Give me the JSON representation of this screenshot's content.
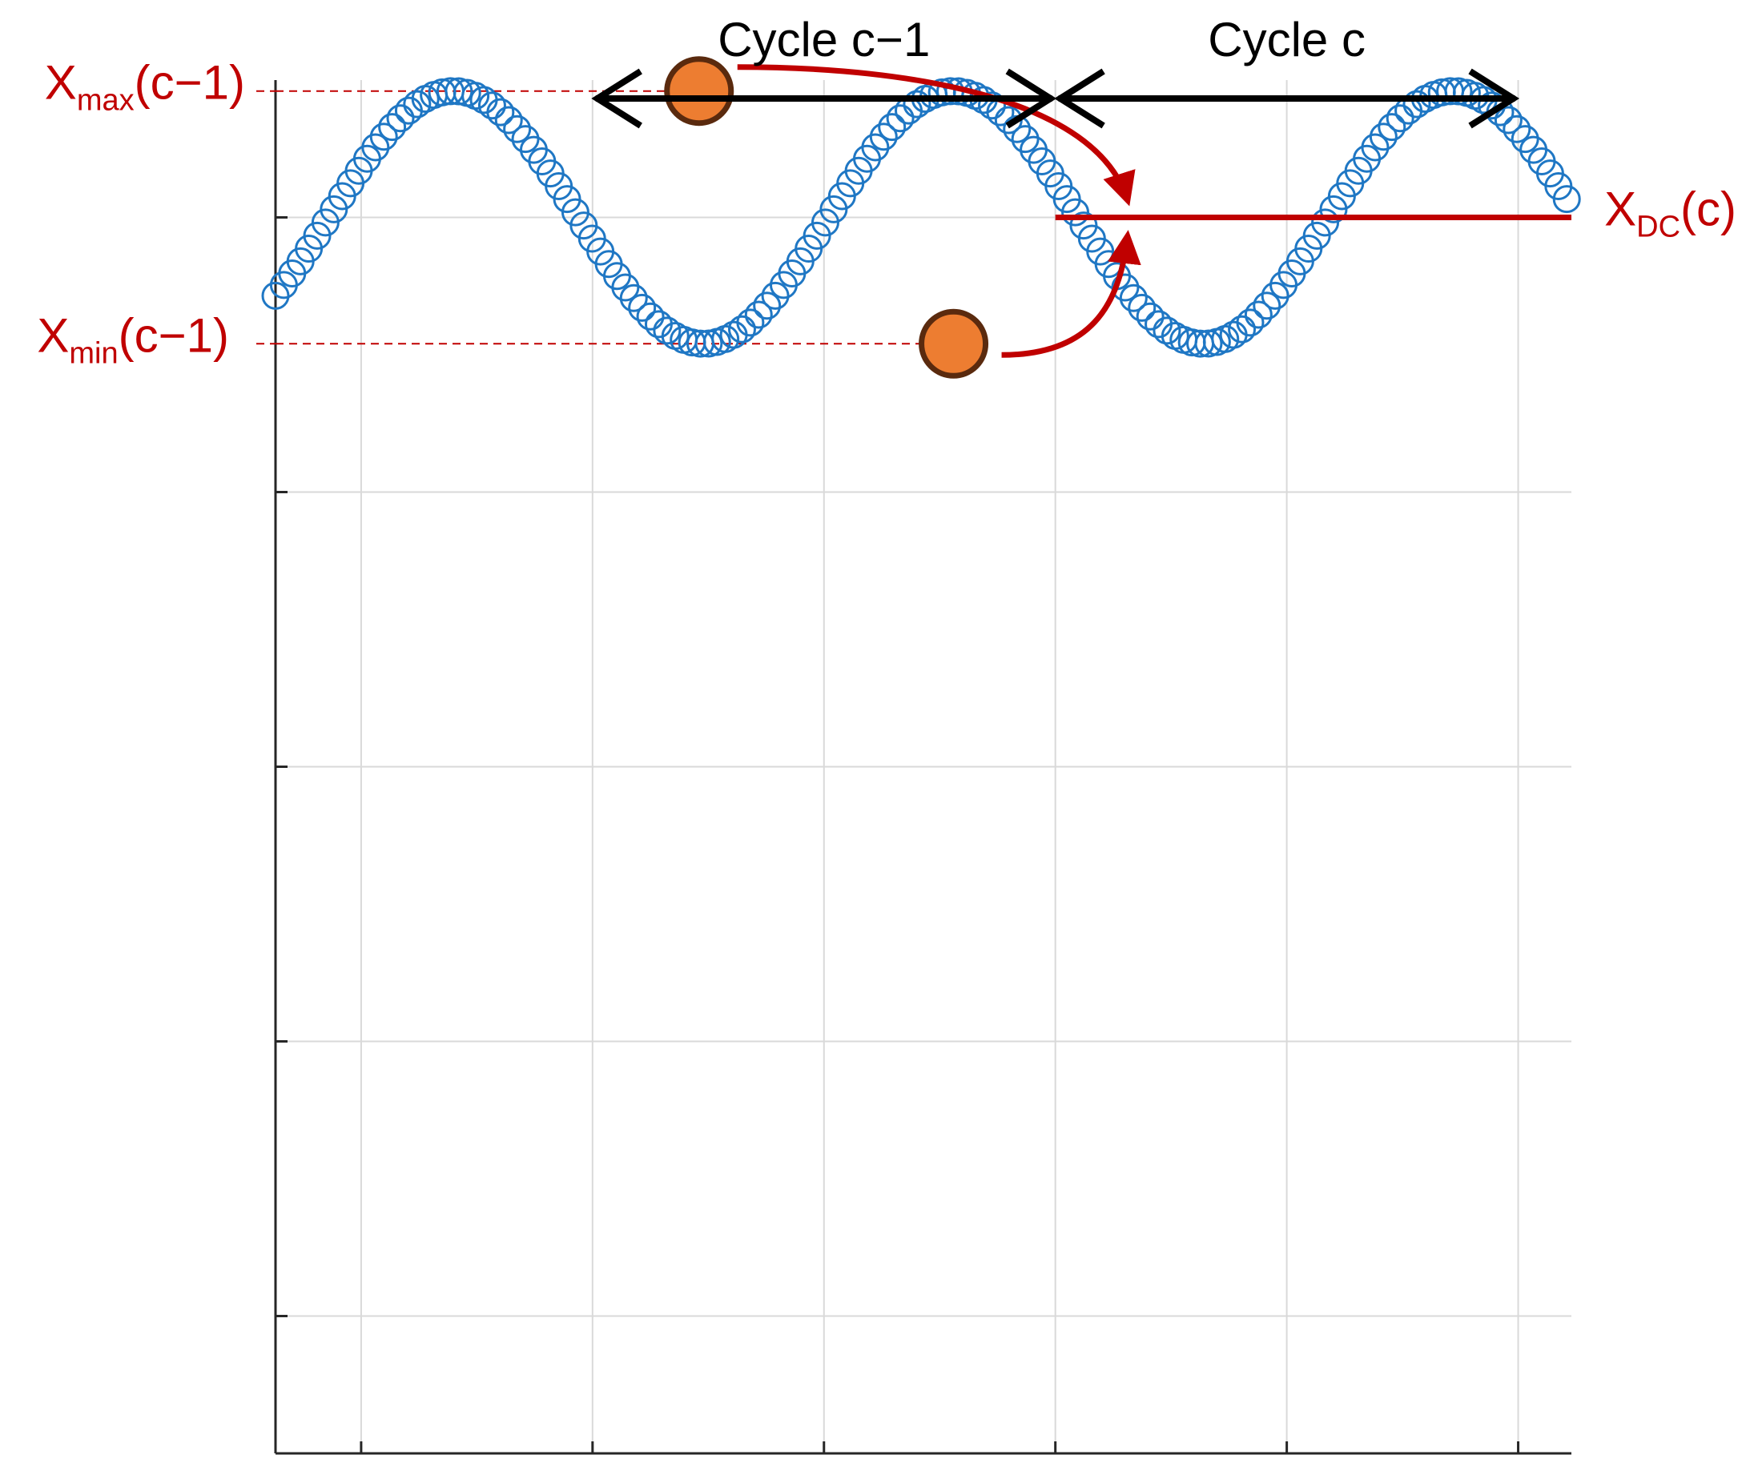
{
  "chart_data": {
    "type": "scatter",
    "title": "",
    "xlabel": "",
    "ylabel": "",
    "grid": true,
    "xlim": [
      0,
      5.6
    ],
    "ylim": [
      -4.5,
      0.5
    ],
    "x_ticks": [
      0.37,
      1.37,
      2.37,
      3.37,
      4.37,
      5.37
    ],
    "y_ticks": [
      0,
      -1,
      -2,
      -3,
      -4
    ],
    "series": [
      {
        "marker": "open-circle",
        "color": "#1f77c4",
        "function": "sine",
        "amplitude": 0.46,
        "period": 2.16,
        "offset": 0,
        "phase_x": 0.23,
        "x_start": 0,
        "x_end": 5.6,
        "step": 0.036
      }
    ],
    "highlight_points": [
      {
        "x": 1.83,
        "y": 0.46,
        "color": "#ed7d31"
      },
      {
        "x": 2.93,
        "y": -0.46,
        "color": "#ed7d31"
      }
    ],
    "dc_line": {
      "y": 0,
      "x_from": 3.37,
      "x_to": 5.6,
      "color": "#c00000"
    },
    "annotations": {
      "cycles": [
        {
          "label": "Cycle c−1",
          "x_from": 1.37,
          "x_to": 3.37
        },
        {
          "label": "Cycle c",
          "x_from": 3.37,
          "x_to": 5.37
        }
      ],
      "xmax": {
        "base": "X",
        "sub": "max",
        "arg": "(c−1)",
        "y": 0.46
      },
      "xmin": {
        "base": "X",
        "sub": "min",
        "arg": "(c−1)",
        "y": -0.46
      },
      "xdc": {
        "base": "X",
        "sub": "DC",
        "arg": "(c)",
        "y": 0
      }
    },
    "colors": {
      "accent_red": "#c00000",
      "series_blue": "#1f77c4",
      "highlight_fill": "#ed7d31",
      "highlight_stroke": "#5a2a0e",
      "grid": "#d9d9d9",
      "arrow_black": "#000000"
    }
  }
}
